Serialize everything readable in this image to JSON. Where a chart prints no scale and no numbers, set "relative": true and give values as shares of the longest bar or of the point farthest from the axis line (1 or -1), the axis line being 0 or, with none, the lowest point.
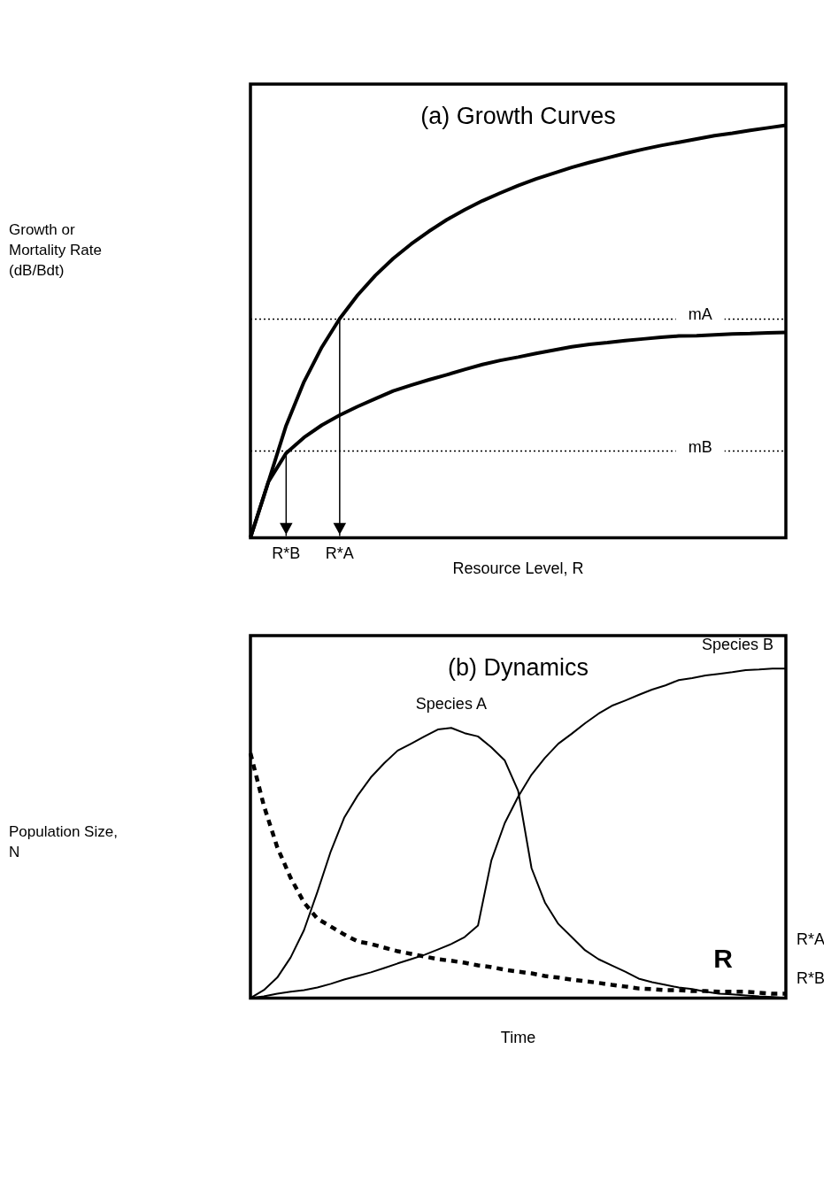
{
  "chart_data": [
    {
      "type": "line",
      "relative": true,
      "title": "(a) Growth Curves",
      "xlabel": "Resource Level, R",
      "ylabel": "Growth or Mortality Rate (dB/Bdt)",
      "line_style": "solid",
      "categories": [
        null,
        null,
        "R*B",
        null,
        null,
        "R*A",
        null,
        null,
        null,
        null,
        null,
        null,
        null,
        null,
        null,
        null,
        null,
        null,
        null,
        null,
        null,
        null,
        null,
        null,
        null,
        null,
        null,
        null,
        null,
        null,
        null
      ],
      "series": [
        {
          "color": "#000000",
          "values": [
            0,
            0.135,
            0.272,
            0.378,
            0.462,
            0.531,
            0.588,
            0.636,
            0.677,
            0.712,
            0.743,
            0.771,
            0.795,
            0.817,
            0.836,
            0.854,
            0.87,
            0.884,
            0.898,
            0.91,
            0.921,
            0.932,
            0.942,
            0.951,
            0.959,
            0.967,
            0.975,
            0.981,
            0.988,
            0.994,
            1
          ]
        },
        {
          "color": "#000000",
          "values": [
            0,
            0.135,
            0.205,
            0.243,
            0.273,
            0.297,
            0.318,
            0.337,
            0.356,
            0.37,
            0.383,
            0.395,
            0.408,
            0.42,
            0.43,
            0.438,
            0.447,
            0.455,
            0.463,
            0.469,
            0.473,
            0.478,
            0.482,
            0.486,
            0.489,
            0.49,
            0.492,
            0.494,
            0.495,
            0.497,
            0.498
          ]
        }
      ],
      "ref_lines": [
        {
          "axis": "y",
          "value": 0.53,
          "label": "mA",
          "line_style": "dotted"
        },
        {
          "axis": "y",
          "value": 0.21,
          "label": "mB",
          "line_style": "dotted"
        },
        {
          "axis": "x",
          "value": "R*B"
        },
        {
          "axis": "x",
          "value": "R*A"
        }
      ]
    },
    {
      "type": "line",
      "relative": true,
      "title": "(b) Dynamics",
      "xlabel": "Time",
      "ylabel": "Population Size, N",
      "line_style": "solid",
      "categories": [
        null,
        null,
        null,
        null,
        null,
        null,
        null,
        null,
        null,
        null,
        null,
        null,
        null,
        null,
        null,
        null,
        null,
        null,
        null,
        null,
        null,
        null,
        null,
        null,
        null,
        null,
        null,
        null,
        null,
        null,
        null,
        null,
        null,
        null,
        null,
        null,
        null,
        null,
        null,
        null,
        null
      ],
      "series": [
        {
          "name": "Species A",
          "color": "#000000",
          "values": [
            0,
            0.024,
            0.062,
            0.123,
            0.206,
            0.322,
            0.445,
            0.547,
            0.614,
            0.67,
            0.713,
            0.751,
            0.772,
            0.794,
            0.815,
            0.82,
            0.804,
            0.794,
            0.761,
            0.721,
            0.629,
            0.394,
            0.29,
            0.225,
            0.185,
            0.145,
            0.118,
            0.099,
            0.08,
            0.059,
            0.048,
            0.04,
            0.032,
            0.027,
            0.019,
            0.013,
            0.011,
            0.008,
            0.005,
            0.003,
            0
          ]
        },
        {
          "name": "Species B",
          "color": "#000000",
          "values": [
            0,
            0.005,
            0.013,
            0.019,
            0.024,
            0.032,
            0.043,
            0.056,
            0.067,
            0.078,
            0.091,
            0.105,
            0.118,
            0.131,
            0.147,
            0.164,
            0.185,
            0.22,
            0.418,
            0.531,
            0.611,
            0.678,
            0.729,
            0.772,
            0.802,
            0.834,
            0.863,
            0.887,
            0.903,
            0.92,
            0.936,
            0.949,
            0.965,
            0.971,
            0.979,
            0.984,
            0.989,
            0.995,
            0.997,
            1,
            1
          ]
        },
        {
          "name": "R",
          "color": "#000000",
          "line_style": "dashed",
          "values": [
            0.743,
            0.584,
            0.458,
            0.365,
            0.29,
            0.241,
            0.217,
            0.193,
            0.172,
            0.164,
            0.153,
            0.142,
            0.134,
            0.126,
            0.118,
            0.113,
            0.107,
            0.099,
            0.094,
            0.086,
            0.08,
            0.075,
            0.067,
            0.062,
            0.056,
            0.051,
            0.046,
            0.04,
            0.035,
            0.029,
            0.027,
            0.024,
            0.024,
            0.021,
            0.021,
            0.019,
            0.019,
            0.019,
            0.016,
            0.013,
            0.013
          ]
        }
      ],
      "annotations": [
        "R*A",
        "R*B"
      ]
    }
  ]
}
